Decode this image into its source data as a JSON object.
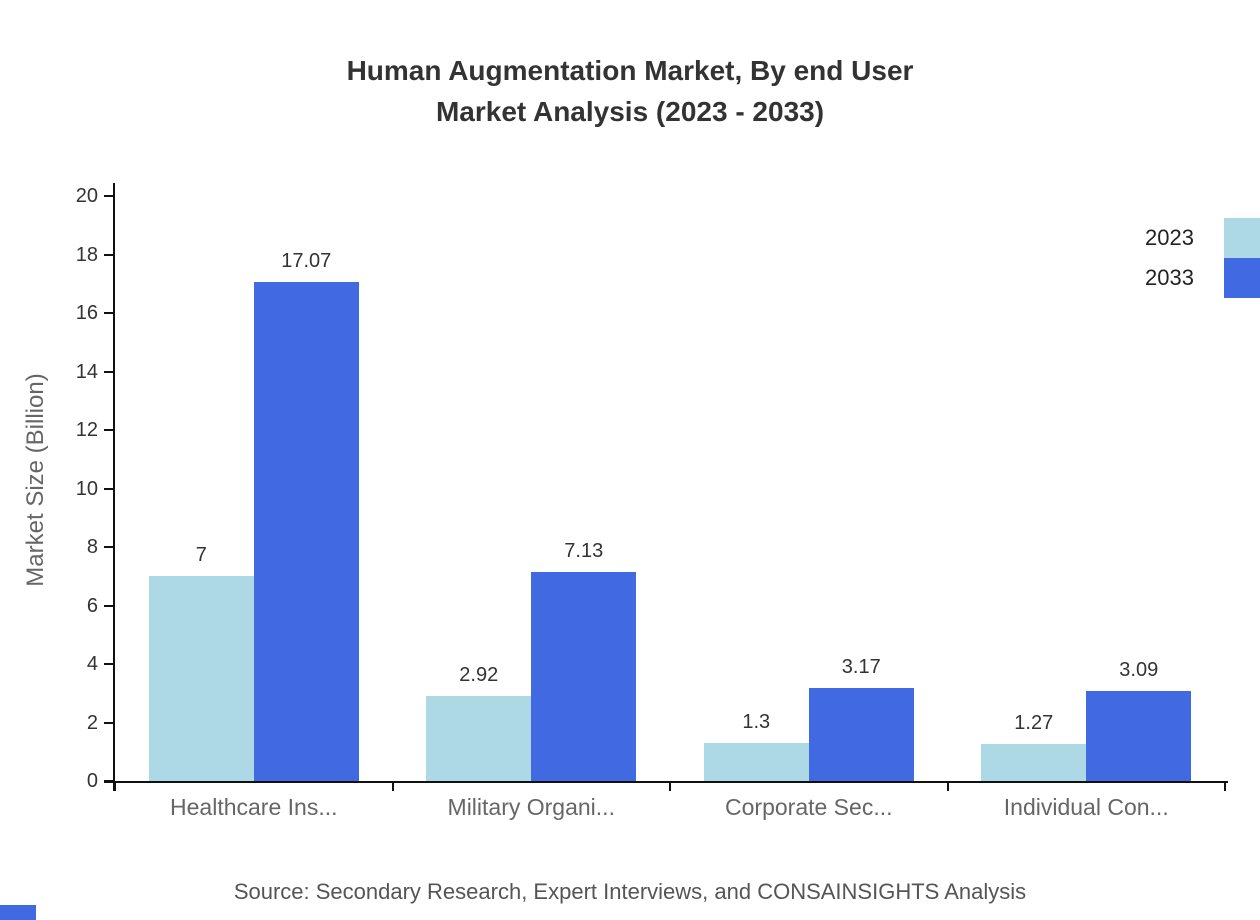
{
  "title": {
    "line1": "Human Augmentation Market, By end User",
    "line2": "Market Analysis (2023 - 2033)"
  },
  "chart_data": {
    "type": "bar",
    "categories": [
      "Healthcare Ins...",
      "Military Organi...",
      "Corporate Sec...",
      "Individual Con..."
    ],
    "series": [
      {
        "name": "2023",
        "color": "#add8e6",
        "values": [
          7,
          2.92,
          1.3,
          1.27
        ]
      },
      {
        "name": "2033",
        "color": "#4169e1",
        "values": [
          17.07,
          7.13,
          3.17,
          3.09
        ]
      }
    ],
    "xlabel": "",
    "ylabel": "Market Size (Billion)",
    "ylim": [
      0,
      20
    ],
    "yticks": [
      0,
      2,
      4,
      6,
      8,
      10,
      12,
      14,
      16,
      18,
      20
    ],
    "grid": false,
    "legend_position": "top-right"
  },
  "footer": {
    "source": "Source: Secondary Research, Expert Interviews, and CONSAINSIGHTS Analysis"
  },
  "colors": {
    "accent_2023": "#add8e6",
    "accent_2033": "#4169e1",
    "axis": "#111111",
    "title_text": "#333333",
    "muted_text": "#666666"
  }
}
